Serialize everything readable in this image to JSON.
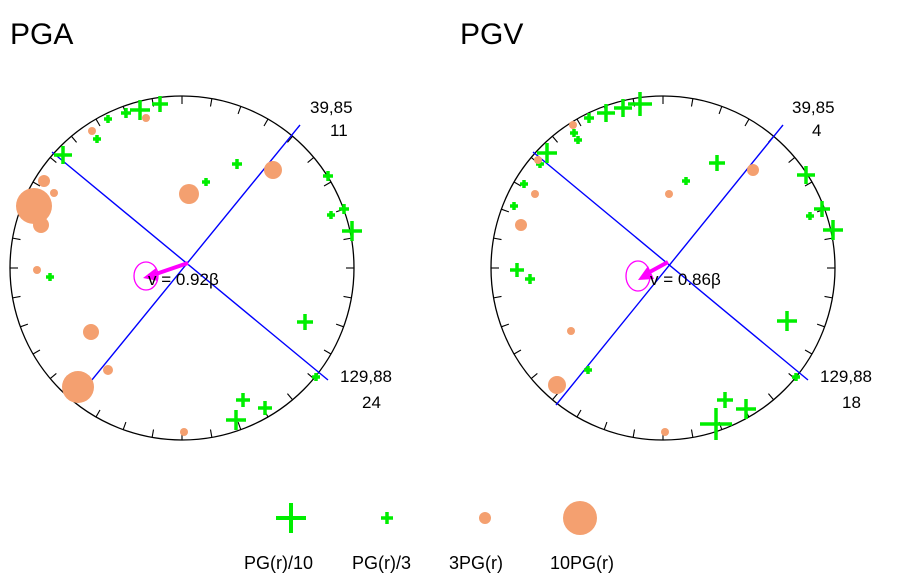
{
  "colors": {
    "station_plus": "#00ee00",
    "station_dot": "#f4a070",
    "nodal_line": "#0000ff",
    "velocity": "#ff00ff",
    "frame": "#000000"
  },
  "panels": [
    {
      "title": "PGA",
      "plane1": "39,85",
      "plane1_count": "11",
      "plane2": "129,88",
      "plane2_count": "24",
      "velocity_label": "v = 0.92β",
      "arrow_azimuth_deg": 248,
      "arrow_length": 0.3,
      "strike1_deg": 39,
      "strike2_deg": 129
    },
    {
      "title": "PGV",
      "plane1": "39,85",
      "plane1_count": "4",
      "plane2": "129,88",
      "plane2_count": "18",
      "velocity_label": "v = 0.86β",
      "arrow_azimuth_deg": 244,
      "arrow_length": 0.3,
      "strike1_deg": 39,
      "strike2_deg": 129
    }
  ],
  "legend": [
    {
      "label": "PG(r)/10",
      "symbol": "plus",
      "scale": "large"
    },
    {
      "label": "PG(r)/3",
      "symbol": "plus",
      "scale": "small"
    },
    {
      "label": "3PG(r)",
      "symbol": "dot",
      "scale": "small"
    },
    {
      "label": "10PG(r)",
      "symbol": "dot",
      "scale": "large"
    }
  ]
}
